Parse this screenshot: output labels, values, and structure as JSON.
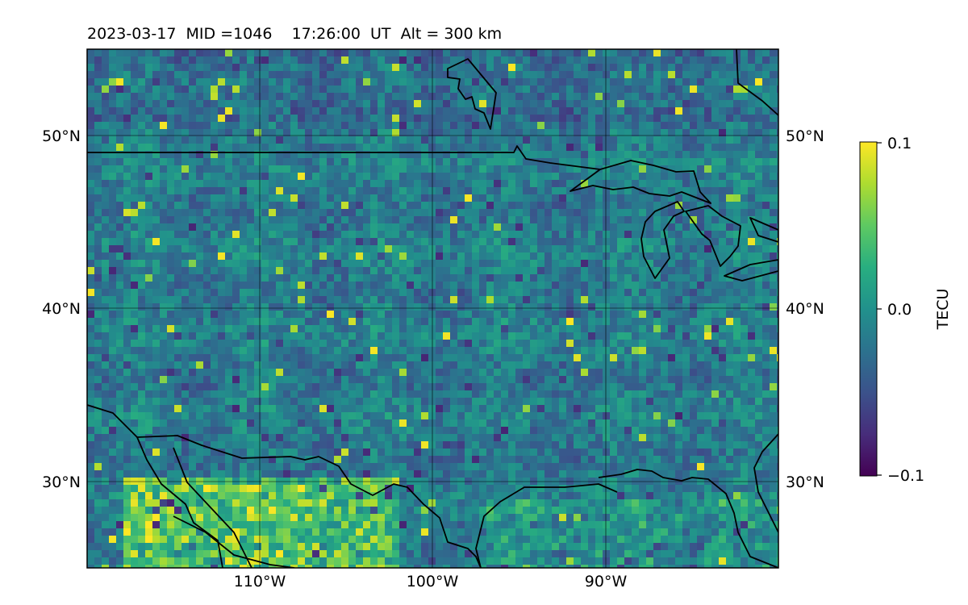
{
  "chart_data": {
    "type": "heatmap",
    "title": "2023-03-17  MID =1046    17:26:00  UT  Alt = 300 km",
    "xlabel": "",
    "ylabel": "",
    "xlim": [
      -120,
      -80
    ],
    "ylim": [
      25,
      55
    ],
    "x_ticks": [
      -110,
      -100,
      -90
    ],
    "y_ticks": [
      30,
      40,
      50
    ],
    "x_tick_labels": [
      "110°W",
      "100°W",
      "90°W"
    ],
    "y_tick_labels": [
      "30°N",
      "40°N",
      "50°N"
    ],
    "grid": true,
    "colormap": "viridis",
    "colorbar": {
      "label": "TECU",
      "range": [
        -0.1,
        0.1
      ],
      "ticks": [
        0.1,
        0.0,
        -0.1
      ],
      "tick_labels": [
        "0.1",
        "0.0",
        "−0.1"
      ]
    },
    "notes": "Gridded TEC perturbation map; broadly near 0.0 TECU with patchy positive values (up to ~0.1) concentrated near the southern edge (~25–30°N, 115–102°W) and scattered small negative patches.",
    "coastlines": true
  }
}
